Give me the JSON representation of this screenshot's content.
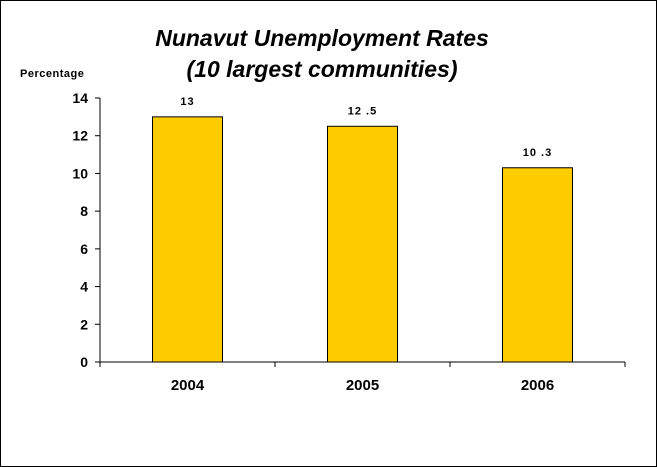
{
  "chart_data": {
    "type": "bar",
    "title": [
      "Nunavut Unemployment Rates",
      "(10 largest communities)"
    ],
    "ylabel": "Percentage",
    "xlabel": "",
    "categories": [
      "2004",
      "2005",
      "2006"
    ],
    "values": [
      13,
      12.5,
      10.3
    ],
    "data_labels": [
      "13",
      "12 .5",
      "10 .3"
    ],
    "ylim": [
      0,
      14
    ],
    "yticks": [
      "0",
      "2",
      "4",
      "6",
      "8",
      "10",
      "12",
      "14"
    ],
    "grid": false,
    "legend": "none",
    "bar_color": "#FFCC00",
    "bar_edge_color": "#000000"
  }
}
